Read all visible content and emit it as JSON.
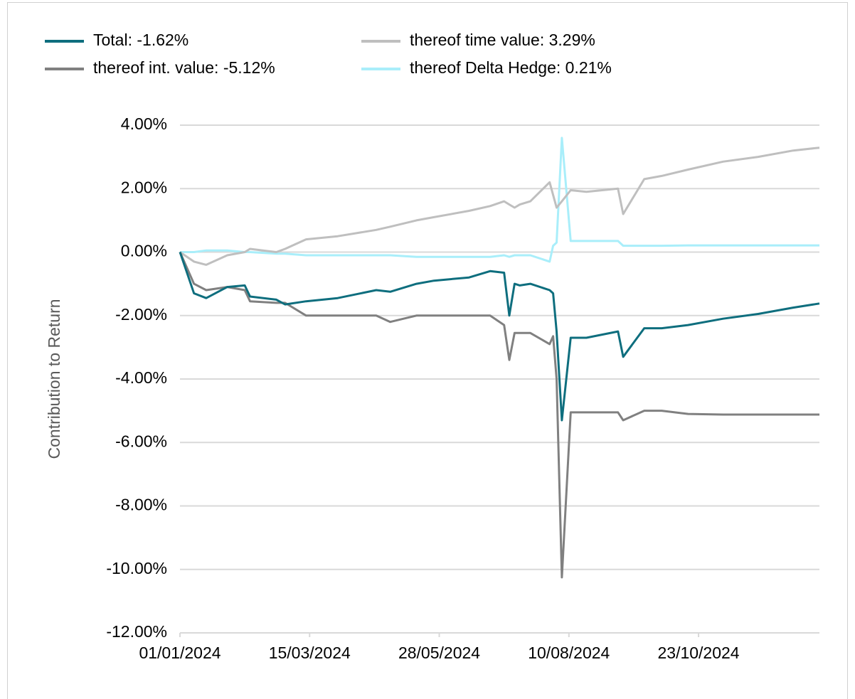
{
  "chart_data": {
    "type": "line",
    "ylabel": "Contribution to Return",
    "x": [
      "01/01/2024",
      "09/01/2024",
      "16/01/2024",
      "28/01/2024",
      "07/02/2024",
      "10/02/2024",
      "25/02/2024",
      "01/03/2024",
      "13/03/2024",
      "31/03/2024",
      "22/04/2024",
      "30/04/2024",
      "15/05/2024",
      "25/05/2024",
      "14/06/2024",
      "26/06/2024",
      "04/07/2024",
      "07/07/2024",
      "10/07/2024",
      "13/07/2024",
      "19/07/2024",
      "30/07/2024",
      "01/08/2024",
      "03/08/2024",
      "06/08/2024",
      "11/08/2024",
      "20/08/2024",
      "07/09/2024",
      "10/09/2024",
      "22/09/2024",
      "02/10/2024",
      "17/10/2024",
      "06/11/2024",
      "26/11/2024",
      "16/12/2024",
      "31/12/2024"
    ],
    "series": [
      {
        "name": "Total: -1.62%",
        "color": "#0e6e7e",
        "values": [
          0,
          -1.3,
          -1.45,
          -1.1,
          -1.05,
          -1.4,
          -1.5,
          -1.65,
          -1.55,
          -1.45,
          -1.2,
          -1.25,
          -1.0,
          -0.9,
          -0.8,
          -0.6,
          -0.65,
          -2.0,
          -1.0,
          -1.05,
          -1.0,
          -1.2,
          -1.3,
          -2.5,
          -5.3,
          -2.7,
          -2.7,
          -2.5,
          -3.3,
          -2.4,
          -2.4,
          -2.3,
          -2.1,
          -1.95,
          -1.75,
          -1.62
        ]
      },
      {
        "name": "thereof int. value: -5.12%",
        "color": "#808080",
        "values": [
          0,
          -1.0,
          -1.2,
          -1.1,
          -1.2,
          -1.55,
          -1.6,
          -1.6,
          -2.0,
          -2.0,
          -2.0,
          -2.2,
          -2.0,
          -2.0,
          -2.0,
          -2.0,
          -2.3,
          -3.4,
          -2.55,
          -2.55,
          -2.55,
          -2.9,
          -2.65,
          -4.0,
          -10.25,
          -5.05,
          -5.05,
          -5.05,
          -5.3,
          -5.0,
          -5.0,
          -5.1,
          -5.12,
          -5.12,
          -5.12,
          -5.12
        ]
      },
      {
        "name": "thereof time value: 3.29%",
        "color": "#bfbfbf",
        "values": [
          0,
          -0.3,
          -0.4,
          -0.1,
          0.0,
          0.1,
          0.0,
          0.1,
          0.4,
          0.5,
          0.7,
          0.8,
          1.0,
          1.1,
          1.3,
          1.45,
          1.6,
          1.5,
          1.4,
          1.5,
          1.6,
          2.2,
          1.8,
          1.4,
          1.6,
          1.95,
          1.9,
          2.0,
          1.2,
          2.3,
          2.4,
          2.6,
          2.85,
          3.0,
          3.2,
          3.29
        ]
      },
      {
        "name": "thereof Delta Hedge: 0.21%",
        "color": "#a9eefa",
        "values": [
          0,
          0.0,
          0.05,
          0.05,
          0.0,
          0.0,
          -0.05,
          -0.05,
          -0.1,
          -0.1,
          -0.1,
          -0.1,
          -0.15,
          -0.15,
          -0.15,
          -0.15,
          -0.1,
          -0.15,
          -0.1,
          -0.1,
          -0.1,
          -0.3,
          0.2,
          0.3,
          3.6,
          0.35,
          0.35,
          0.35,
          0.2,
          0.2,
          0.2,
          0.21,
          0.21,
          0.21,
          0.21,
          0.21
        ]
      }
    ],
    "xlim": [
      "01/01/2024",
      "31/12/2024"
    ],
    "xticks": [
      "01/01/2024",
      "15/03/2024",
      "28/05/2024",
      "10/08/2024",
      "23/10/2024"
    ],
    "ylim": [
      -12,
      4
    ],
    "yticks": [
      {
        "value": 4,
        "label": "4.00%"
      },
      {
        "value": 2,
        "label": "2.00%"
      },
      {
        "value": 0,
        "label": "0.00%"
      },
      {
        "value": -2,
        "label": "-2.00%"
      },
      {
        "value": -4,
        "label": "-4.00%"
      },
      {
        "value": -6,
        "label": "-6.00%"
      },
      {
        "value": -8,
        "label": "-8.00%"
      },
      {
        "value": -10,
        "label": "-10.00%"
      },
      {
        "value": -12,
        "label": "-12.00%"
      }
    ],
    "grid": true
  }
}
